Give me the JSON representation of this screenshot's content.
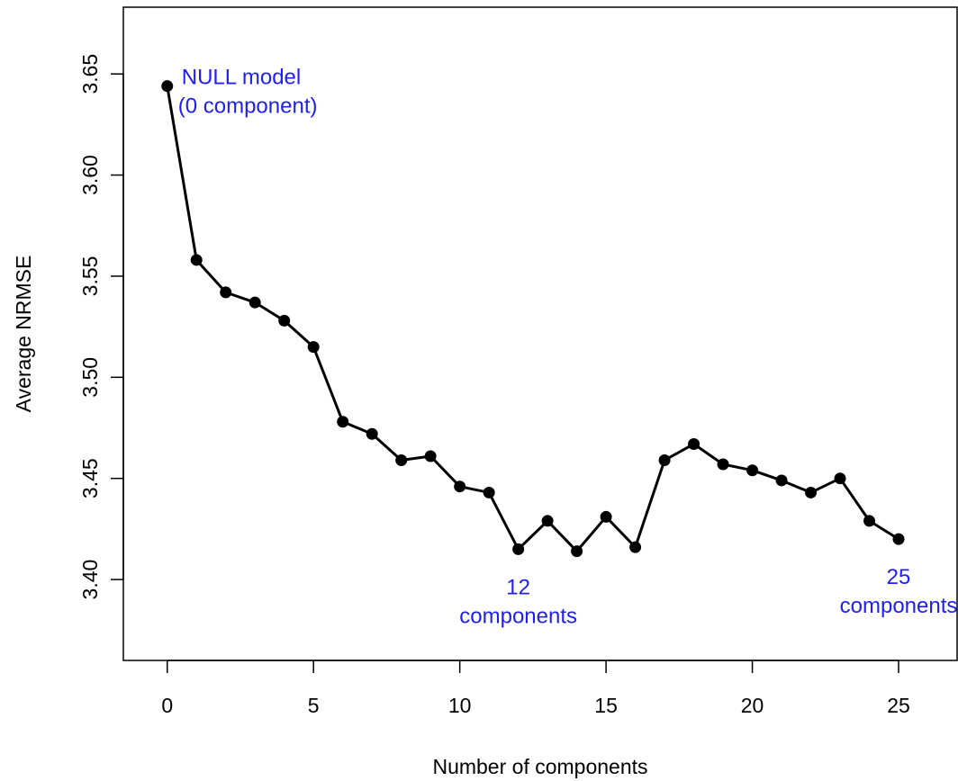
{
  "chart_data": {
    "type": "line",
    "title": "",
    "xlabel": "Number of components",
    "ylabel": "Average NRMSE",
    "xlim": [
      -1.5,
      27.0
    ],
    "ylim": [
      3.36,
      3.683
    ],
    "x_ticks": [
      0,
      5,
      10,
      15,
      20,
      25
    ],
    "y_ticks": [
      3.4,
      3.45,
      3.5,
      3.55,
      3.6,
      3.65
    ],
    "x_tick_labels": [
      "0",
      "5",
      "10",
      "15",
      "20",
      "25"
    ],
    "y_tick_labels": [
      "3.40",
      "3.45",
      "3.50",
      "3.55",
      "3.60",
      "3.65"
    ],
    "grid": false,
    "legend": "none",
    "series_color": "#000000",
    "annotation_color": "#2020ee",
    "x": [
      0,
      1,
      2,
      3,
      4,
      5,
      6,
      7,
      8,
      9,
      10,
      11,
      12,
      13,
      14,
      15,
      16,
      17,
      18,
      19,
      20,
      21,
      22,
      23,
      24,
      25
    ],
    "y": [
      3.644,
      3.558,
      3.542,
      3.537,
      3.528,
      3.515,
      3.478,
      3.472,
      3.459,
      3.461,
      3.446,
      3.443,
      3.415,
      3.429,
      3.414,
      3.431,
      3.416,
      3.459,
      3.467,
      3.457,
      3.454,
      3.449,
      3.443,
      3.45,
      3.429,
      3.42
    ],
    "annotations": [
      {
        "lines": [
          "NULL model",
          "(0 component)"
        ],
        "x": 0,
        "y": 3.644,
        "anchor": "right-of-point"
      },
      {
        "lines": [
          "12",
          "components"
        ],
        "x": 12,
        "y": 3.415,
        "anchor": "below-point"
      },
      {
        "lines": [
          "25",
          "components"
        ],
        "x": 25,
        "y": 3.42,
        "anchor": "below-point"
      }
    ]
  }
}
